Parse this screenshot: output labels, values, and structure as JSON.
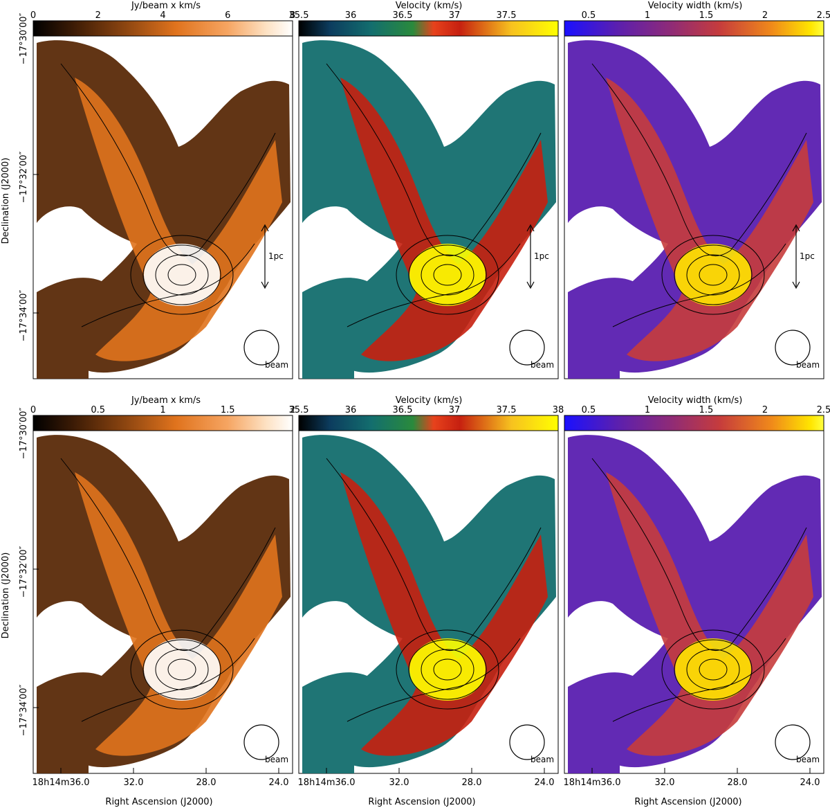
{
  "colorbars": {
    "intensity_top": {
      "title": "Jy/beam x km/s",
      "ticks": [
        "0",
        "2",
        "4",
        "6",
        "8"
      ]
    },
    "velocity_top": {
      "title": "Velocity (km/s)",
      "ticks": [
        "35.5",
        "36",
        "36.5",
        "37",
        "37.5"
      ]
    },
    "width_top": {
      "title": "Velocity width (km/s)",
      "ticks": [
        "0.5",
        "1",
        "1.5",
        "2",
        "2.5"
      ]
    },
    "intensity_bottom": {
      "title": "Jy/beam x km/s",
      "ticks": [
        "0",
        "0.5",
        "1",
        "1.5",
        "2"
      ]
    },
    "velocity_bottom": {
      "title": "Velocity (km/s)",
      "ticks": [
        "35.5",
        "36",
        "36.5",
        "37",
        "37.5",
        "38"
      ]
    },
    "width_bottom": {
      "title": "Velocity width (km/s)",
      "ticks": [
        "0.5",
        "1",
        "1.5",
        "2",
        "2.5"
      ]
    }
  },
  "axes": {
    "dec_label": "Declination (J2000)",
    "ra_label": "Right Ascension (J2000)",
    "dec_ticks": [
      "−17°30′00″",
      "−17°32′00″",
      "−17°34′00″"
    ],
    "ra_ticks": [
      "18h14m36.0",
      "32.0",
      "28.0",
      "24.0"
    ]
  },
  "annotations": {
    "scale_bar": "1pc",
    "beam": "beam"
  },
  "colors": {
    "intensity_map": [
      "#000000",
      "#3a1a05",
      "#8a4410",
      "#e0731d",
      "#f6a562",
      "#fde2c4",
      "#ffffff"
    ],
    "velocity_map": [
      "#000000",
      "#0c3c5e",
      "#136e6e",
      "#2a8a3c",
      "#e7421c",
      "#c62010",
      "#f7c21f",
      "#ffff00"
    ],
    "width_map": [
      "#1a10ff",
      "#5a1fb0",
      "#8c2a7a",
      "#c63c3c",
      "#f08a1a",
      "#ffe600",
      "#ffff40"
    ]
  }
}
